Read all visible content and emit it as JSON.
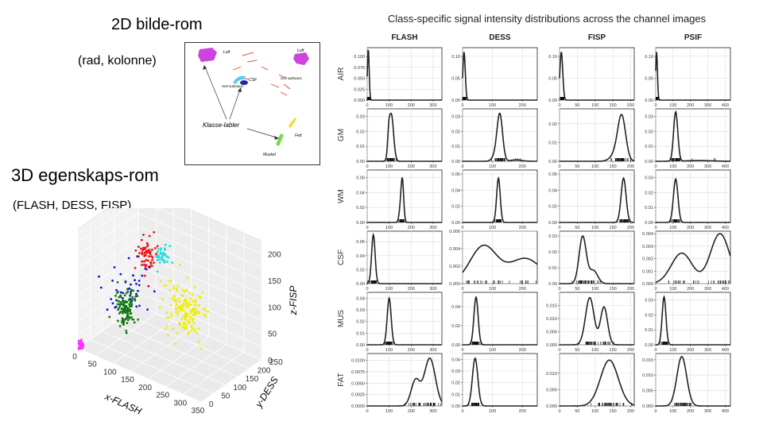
{
  "left": {
    "title_2d": "2D bilde-rom",
    "subtitle_2d": "(rad, kolonne)",
    "title_3d": "3D egenskaps-rom",
    "subtitle_3d": "(FLASH, DESS, FISP)"
  },
  "inset": {
    "labels": {
      "luft_left": "Luft",
      "luft_right": "Luft",
      "csf": "CSF",
      "hvit": "Hvit substans",
      "gra": "Grå substans",
      "klasse": "Klasse-labler",
      "fett": "Fett",
      "muskel": "Muskel"
    },
    "colors": {
      "luft": "#cc44dd",
      "csf_blue": "#1a2a9a",
      "csf_cyan": "#55ccee",
      "fett": "#e8e030",
      "muskel": "#77dd44",
      "gra": "#e07070"
    }
  },
  "chart_data": [
    {
      "type": "scatter",
      "title": "",
      "xlabel": "x-FLASH",
      "ylabel": "y-DESS",
      "zlabel": "z-FISP",
      "x_ticks": [
        "0",
        "50",
        "100",
        "150",
        "200",
        "250",
        "300",
        "350"
      ],
      "y_ticks": [
        "0",
        "50",
        "100",
        "150",
        "200",
        "250"
      ],
      "z_ticks": [
        "0",
        "25",
        "50",
        "75",
        "100",
        "125",
        "150",
        "175",
        "200"
      ],
      "z_ticks_labeled": [
        "0",
        "50",
        "100",
        "150",
        "200"
      ],
      "xlim": [
        0,
        350
      ],
      "ylim": [
        0,
        250
      ],
      "zlim": [
        0,
        225
      ],
      "clusters": [
        {
          "name": "AIR",
          "color": "#ff33ff",
          "center": [
            5,
            5,
            5
          ],
          "spread": [
            3,
            3,
            4
          ],
          "n": 70
        },
        {
          "name": "GM",
          "color": "#ee1111",
          "center": [
            110,
            125,
            170
          ],
          "spread": [
            12,
            12,
            18
          ],
          "n": 60
        },
        {
          "name": "WM",
          "color": "#22dddd",
          "center": [
            160,
            120,
            180
          ],
          "spread": [
            8,
            8,
            8
          ],
          "n": 40
        },
        {
          "name": "CSF",
          "color": "#1111dd",
          "center": [
            40,
            150,
            70
          ],
          "spread": [
            12,
            40,
            25
          ],
          "n": 40
        },
        {
          "name": "MUS",
          "color": "#117711",
          "center": [
            100,
            50,
            90
          ],
          "spread": [
            12,
            10,
            20
          ],
          "n": 110
        },
        {
          "name": "FAT",
          "color": "#eeee00",
          "center": [
            275,
            40,
            140
          ],
          "spread": [
            30,
            12,
            25
          ],
          "n": 150
        }
      ]
    },
    {
      "type": "line",
      "title": "Class-specific signal intensity distributions across the channel images",
      "channels": [
        {
          "name": "FLASH",
          "xlim": [
            0,
            340
          ],
          "xticks": [
            0,
            100,
            200,
            300
          ]
        },
        {
          "name": "DESS",
          "xlim": [
            0,
            250
          ],
          "xticks": [
            0,
            100,
            200
          ]
        },
        {
          "name": "FISP",
          "xlim": [
            0,
            210
          ],
          "xticks": [
            0,
            50,
            100,
            150,
            200
          ]
        },
        {
          "name": "PSIF",
          "xlim": [
            0,
            430
          ],
          "xticks": [
            0,
            100,
            200,
            300,
            400
          ]
        }
      ],
      "rows": [
        {
          "class": "AIR",
          "cells": [
            {
              "ylim": [
                0,
                0.12
              ],
              "yticks": [
                "0.000",
                "0.025",
                "0.050",
                "0.075",
                "0.100"
              ],
              "yvals": [
                0,
                0.025,
                0.05,
                0.075,
                0.1
              ],
              "comps": [
                [
                  1,
                  5,
                  4
                ]
              ],
              "peak": 0.115
            },
            {
              "ylim": [
                0,
                0.12
              ],
              "yticks": [
                "0.00",
                "0.05",
                "0.10"
              ],
              "yvals": [
                0,
                0.05,
                0.1
              ],
              "comps": [
                [
                  1,
                  5,
                  4
                ]
              ],
              "peak": 0.11
            },
            {
              "ylim": [
                0,
                0.12
              ],
              "yticks": [
                "0.00",
                "0.05",
                "0.10"
              ],
              "yvals": [
                0,
                0.05,
                0.1
              ],
              "comps": [
                [
                  1,
                  5,
                  4
                ]
              ],
              "peak": 0.11
            },
            {
              "ylim": [
                0,
                0.12
              ],
              "yticks": [
                "0.00",
                "0.05",
                "0.10"
              ],
              "yvals": [
                0,
                0.05,
                0.1
              ],
              "comps": [
                [
                  1,
                  5,
                  5
                ]
              ],
              "peak": 0.11
            }
          ]
        },
        {
          "class": "GM",
          "cells": [
            {
              "ylim": [
                0,
                0.035
              ],
              "yticks": [
                "0.00",
                "0.01",
                "0.02",
                "0.03"
              ],
              "yvals": [
                0,
                0.01,
                0.02,
                0.03
              ],
              "comps": [
                [
                  0.85,
                  110,
                  10
                ],
                [
                  0.15,
                  98,
                  5
                ]
              ],
              "peak": 0.032
            },
            {
              "ylim": [
                0,
                0.035
              ],
              "yticks": [
                "0.00",
                "0.01",
                "0.02",
                "0.03"
              ],
              "yvals": [
                0,
                0.01,
                0.02,
                0.03
              ],
              "comps": [
                [
                  0.75,
                  125,
                  9
                ],
                [
                  0.2,
                  115,
                  12
                ],
                [
                  0.05,
                  180,
                  18
                ]
              ],
              "peak": 0.032
            },
            {
              "ylim": [
                0,
                0.028
              ],
              "yticks": [
                "0.00",
                "0.01",
                "0.02"
              ],
              "yvals": [
                0,
                0.01,
                0.02
              ],
              "comps": [
                [
                  0.8,
                  175,
                  11
                ],
                [
                  0.2,
                  160,
                  15
                ]
              ],
              "peak": 0.025
            },
            {
              "ylim": [
                0,
                0.035
              ],
              "yticks": [
                "0.00",
                "0.01",
                "0.02",
                "0.03"
              ],
              "yvals": [
                0,
                0.01,
                0.02,
                0.03
              ],
              "comps": [
                [
                  0.92,
                  115,
                  12
                ],
                [
                  0.08,
                  250,
                  70
                ]
              ],
              "peak": 0.033
            }
          ]
        },
        {
          "class": "WM",
          "cells": [
            {
              "ylim": [
                0,
                0.07
              ],
              "yticks": [
                "0.00",
                "0.02",
                "0.04",
                "0.06"
              ],
              "yvals": [
                0,
                0.02,
                0.04,
                0.06
              ],
              "comps": [
                [
                  0.8,
                  160,
                  6
                ],
                [
                  0.2,
                  150,
                  6
                ]
              ],
              "peak": 0.06
            },
            {
              "ylim": [
                0,
                0.065
              ],
              "yticks": [
                "0.00",
                "0.02",
                "0.04",
                "0.06"
              ],
              "yvals": [
                0,
                0.02,
                0.04,
                0.06
              ],
              "comps": [
                [
                  1,
                  120,
                  6
                ]
              ],
              "peak": 0.055
            },
            {
              "ylim": [
                0,
                0.065
              ],
              "yticks": [
                "0.00",
                "0.02",
                "0.04",
                "0.06"
              ],
              "yvals": [
                0,
                0.02,
                0.04,
                0.06
              ],
              "comps": [
                [
                  1,
                  180,
                  7
                ]
              ],
              "peak": 0.055
            },
            {
              "ylim": [
                0,
                0.035
              ],
              "yticks": [
                "0.00",
                "0.01",
                "0.02",
                "0.03"
              ],
              "yvals": [
                0,
                0.01,
                0.02,
                0.03
              ],
              "comps": [
                [
                  1,
                  115,
                  13
                ]
              ],
              "peak": 0.029
            }
          ]
        },
        {
          "class": "CSF",
          "cells": [
            {
              "ylim": [
                0,
                0.075
              ],
              "yticks": [
                "0.00",
                "0.02",
                "0.04",
                "0.06"
              ],
              "yvals": [
                0,
                0.02,
                0.04,
                0.06
              ],
              "comps": [
                [
                  1,
                  28,
                  8
                ]
              ],
              "peak": 0.07
            },
            {
              "ylim": [
                0,
                0.006
              ],
              "yticks": [
                "0.000",
                "0.002",
                "0.004",
                "0.006"
              ],
              "yvals": [
                0,
                0.002,
                0.004,
                0.006
              ],
              "comps": [
                [
                  0.55,
                  70,
                  45
                ],
                [
                  0.45,
                  210,
                  55
                ]
              ],
              "peak": 0.0044
            },
            {
              "ylim": [
                0,
                0.033
              ],
              "yticks": [
                "0.00",
                "0.01",
                "0.02",
                "0.03"
              ],
              "yvals": [
                0,
                0.01,
                0.02,
                0.03
              ],
              "comps": [
                [
                  0.75,
                  65,
                  10
                ],
                [
                  0.25,
                  95,
                  12
                ]
              ],
              "peak": 0.03
            },
            {
              "ylim": [
                0,
                0.0042
              ],
              "yticks": [
                "0.000",
                "0.001",
                "0.002",
                "0.003",
                "0.004"
              ],
              "yvals": [
                0,
                0.001,
                0.002,
                0.003,
                0.004
              ],
              "comps": [
                [
                  0.4,
                  150,
                  60
                ],
                [
                  0.6,
                  370,
                  55
                ]
              ],
              "peak": 0.004
            }
          ]
        },
        {
          "class": "MUS",
          "cells": [
            {
              "ylim": [
                0,
                0.045
              ],
              "yticks": [
                "0.00",
                "0.01",
                "0.02",
                "0.03",
                "0.04"
              ],
              "yvals": [
                0,
                0.01,
                0.02,
                0.03,
                0.04
              ],
              "comps": [
                [
                  1,
                  100,
                  9
                ]
              ],
              "peak": 0.04
            },
            {
              "ylim": [
                0,
                0.055
              ],
              "yticks": [
                "0.00",
                "0.02",
                "0.04"
              ],
              "yvals": [
                0,
                0.02,
                0.04
              ],
              "comps": [
                [
                  1,
                  45,
                  7
                ]
              ],
              "peak": 0.05
            },
            {
              "ylim": [
                0,
                0.02
              ],
              "yticks": [
                "0.000",
                "0.005",
                "0.010",
                "0.015"
              ],
              "yvals": [
                0,
                0.005,
                0.01,
                0.015
              ],
              "comps": [
                [
                  0.6,
                  85,
                  12
                ],
                [
                  0.4,
                  125,
                  10
                ]
              ],
              "peak": 0.018
            },
            {
              "ylim": [
                0,
                0.035
              ],
              "yticks": [
                "0.00",
                "0.01",
                "0.02",
                "0.03"
              ],
              "yvals": [
                0,
                0.01,
                0.02,
                0.03
              ],
              "comps": [
                [
                  1,
                  48,
                  11
                ]
              ],
              "peak": 0.032
            }
          ]
        },
        {
          "class": "FAT",
          "cells": [
            {
              "ylim": [
                0,
                0.0115
              ],
              "yticks": [
                "0.0000",
                "0.0025",
                "0.0050",
                "0.0075",
                "0.0100"
              ],
              "yvals": [
                0,
                0.0025,
                0.005,
                0.0075,
                0.01
              ],
              "comps": [
                [
                  0.3,
                  220,
                  20
                ],
                [
                  0.7,
                  285,
                  25
                ]
              ],
              "peak": 0.0105
            },
            {
              "ylim": [
                0,
                0.045
              ],
              "yticks": [
                "0.00",
                "0.01",
                "0.02",
                "0.03",
                "0.04"
              ],
              "yvals": [
                0,
                0.01,
                0.02,
                0.03,
                0.04
              ],
              "comps": [
                [
                  1,
                  42,
                  9
                ]
              ],
              "peak": 0.041
            },
            {
              "ylim": [
                0,
                0.016
              ],
              "yticks": [
                "0.000",
                "0.005",
                "0.010"
              ],
              "yvals": [
                0,
                0.005,
                0.01
              ],
              "comps": [
                [
                  1,
                  140,
                  25
                ]
              ],
              "peak": 0.014
            },
            {
              "ylim": [
                0,
                0.017
              ],
              "yticks": [
                "0.000",
                "0.005",
                "0.010",
                "0.015"
              ],
              "yvals": [
                0,
                0.005,
                0.01,
                0.015
              ],
              "comps": [
                [
                  1,
                  150,
                  28
                ]
              ],
              "peak": 0.016
            }
          ]
        }
      ]
    }
  ]
}
